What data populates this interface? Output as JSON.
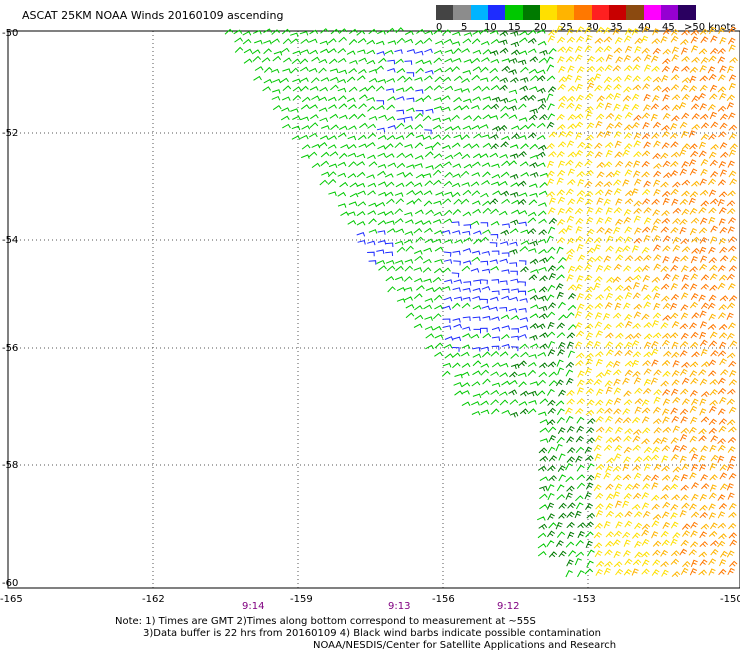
{
  "title": "ASCAT 25KM NOAA Winds 20160109 ascending",
  "legend": {
    "colors": [
      "#444444",
      "#8c8c8c",
      "#00b4ff",
      "#1e2cff",
      "#00c800",
      "#007a00",
      "#ffe000",
      "#ffb400",
      "#ff7800",
      "#ff2020",
      "#c80000",
      "#8b4a10",
      "#ff00ff",
      "#9600d2",
      "#2a0060"
    ],
    "labels": [
      "0",
      "5",
      "10",
      "15",
      "20",
      "25",
      "30",
      "35",
      "40",
      "45",
      ">50 knots"
    ]
  },
  "axes": {
    "y_labels": [
      "-50",
      "-52",
      "-54",
      "-56",
      "-58",
      "-60"
    ],
    "x_labels": [
      "-165",
      "-162",
      "-159",
      "-156",
      "-153",
      "-150"
    ],
    "time_labels": [
      "9:14",
      "9:13",
      "9:12"
    ]
  },
  "footer": {
    "line1": "Note: 1) Times are GMT 2)Times along bottom correspond to measurement at ~55S",
    "line2": "3)Data buffer is 22 hrs from 20160109 4) Black wind barbs indicate possible contamination",
    "line3": "NOAA/NESDIS/Center for Satellite Applications and Research"
  },
  "map": {
    "lon_range": [
      -165,
      -150
    ],
    "lat_range": [
      -60,
      -50
    ],
    "data_source": "ASCAT wind barbs",
    "regions": {
      "green": "main swath west of ~-154",
      "blue": "pockets of 15 kt near -157 to -155 at -54 to -56 and near -158 at -51",
      "yellow_orange": "strong winds east of ~-154 increasing eastward"
    }
  }
}
